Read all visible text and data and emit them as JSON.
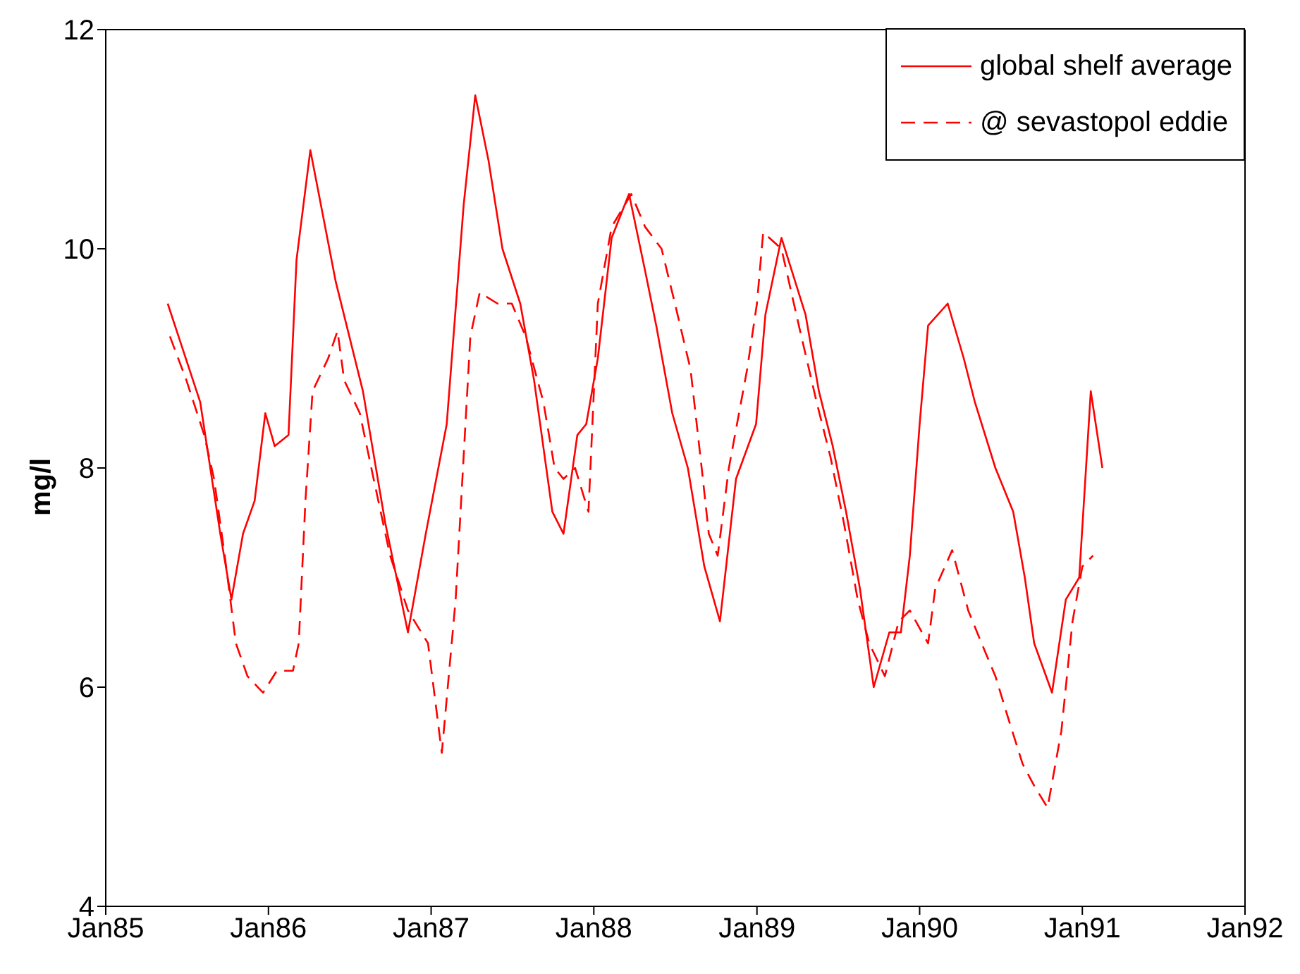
{
  "chart_data": {
    "type": "line",
    "ylabel": "mg/l",
    "xlim": [
      "1985-01",
      "1992-01"
    ],
    "ylim": [
      4,
      12
    ],
    "xticks": [
      {
        "value": "1985-01",
        "label": "Jan85"
      },
      {
        "value": "1986-01",
        "label": "Jan86"
      },
      {
        "value": "1987-01",
        "label": "Jan87"
      },
      {
        "value": "1988-01",
        "label": "Jan88"
      },
      {
        "value": "1989-01",
        "label": "Jan89"
      },
      {
        "value": "1990-01",
        "label": "Jan90"
      },
      {
        "value": "1991-01",
        "label": "Jan91"
      },
      {
        "value": "1992-01",
        "label": "Jan92"
      }
    ],
    "yticks": [
      4,
      6,
      8,
      10,
      12
    ],
    "legend": "top right",
    "series": [
      {
        "name": "global shelf average",
        "color": "#ff0000",
        "line_style": "solid",
        "x": [
          "1985-05-20",
          "1985-08-01",
          "1985-09-15",
          "1985-10-10",
          "1985-11-05",
          "1985-12-01",
          "1985-12-25",
          "1986-01-15",
          "1986-02-15",
          "1986-03-05",
          "1986-04-05",
          "1986-06-01",
          "1986-08-01",
          "1986-09-20",
          "1986-11-10",
          "1986-12-20",
          "1987-02-05",
          "1987-03-15",
          "1987-04-10",
          "1987-05-10",
          "1987-06-10",
          "1987-07-20",
          "1987-08-20",
          "1987-09-30",
          "1987-10-25",
          "1987-11-25",
          "1987-12-15",
          "1988-01-10",
          "1988-02-10",
          "1988-03-20",
          "1988-04-25",
          "1988-05-20",
          "1988-06-25",
          "1988-07-30",
          "1988-09-05",
          "1988-10-10",
          "1988-11-15",
          "1988-12-30",
          "1989-01-20",
          "1989-02-25",
          "1989-04-20",
          "1989-05-20",
          "1989-06-20",
          "1989-07-20",
          "1989-08-20",
          "1989-09-20",
          "1989-10-25",
          "1989-11-20",
          "1989-12-10",
          "1990-01-01",
          "1990-01-20",
          "1990-03-05",
          "1990-04-10",
          "1990-05-05",
          "1990-06-20",
          "1990-07-30",
          "1990-08-25",
          "1990-09-15",
          "1990-10-25",
          "1990-11-25",
          "1990-12-25",
          "1991-01-20",
          "1991-02-15"
        ],
        "values": [
          9.5,
          8.6,
          7.4,
          6.8,
          7.4,
          7.7,
          8.5,
          8.2,
          8.3,
          9.9,
          10.9,
          9.7,
          8.7,
          7.5,
          6.5,
          7.4,
          8.4,
          10.4,
          11.4,
          10.8,
          10,
          9.5,
          8.8,
          7.6,
          7.4,
          8.3,
          8.4,
          9,
          10.1,
          10.5,
          9.8,
          9.3,
          8.5,
          8,
          7.1,
          6.6,
          7.9,
          8.4,
          9.4,
          10.1,
          9.4,
          8.7,
          8.2,
          7.6,
          6.9,
          6,
          6.5,
          6.5,
          7.2,
          8.4,
          9.3,
          9.5,
          9,
          8.6,
          8,
          7.6,
          7,
          6.4,
          5.95,
          6.8,
          7,
          8.7,
          8
        ]
      },
      {
        "name": "@ sevastopol eddie",
        "color": "#ff0000",
        "line_style": "dashed",
        "x": [
          "1985-05-25",
          "1985-07-01",
          "1985-08-10",
          "1985-09-01",
          "1985-09-25",
          "1985-10-20",
          "1985-11-15",
          "1985-12-20",
          "1986-01-20",
          "1986-02-25",
          "1986-03-10",
          "1986-03-25",
          "1986-04-10",
          "1986-05-15",
          "1986-06-05",
          "1986-06-20",
          "1986-07-25",
          "1986-08-25",
          "1986-10-01",
          "1986-11-10",
          "1986-12-25",
          "1987-01-25",
          "1987-02-25",
          "1987-03-30",
          "1987-04-20",
          "1987-05-30",
          "1987-07-01",
          "1987-08-01",
          "1987-09-10",
          "1987-10-05",
          "1987-10-25",
          "1987-11-20",
          "1987-12-20",
          "1988-01-10",
          "1988-02-10",
          "1988-03-25",
          "1988-04-25",
          "1988-06-01",
          "1988-07-01",
          "1988-08-05",
          "1988-08-30",
          "1988-09-15",
          "1988-10-05",
          "1988-10-30",
          "1988-12-10",
          "1989-01-01",
          "1989-01-15",
          "1989-02-25",
          "1989-04-05",
          "1989-05-15",
          "1989-06-15",
          "1989-07-15",
          "1989-08-15",
          "1989-09-10",
          "1989-10-15",
          "1989-11-15",
          "1989-12-10",
          "1990-01-20",
          "1990-02-05",
          "1990-03-15",
          "1990-04-20",
          "1990-05-20",
          "1990-06-20",
          "1990-07-20",
          "1990-08-20",
          "1990-09-15",
          "1990-10-15",
          "1990-11-15",
          "1990-12-10",
          "1991-01-01",
          "1991-01-25"
        ],
        "values": [
          9.2,
          8.8,
          8.3,
          7.9,
          7.2,
          6.4,
          6.1,
          5.95,
          6.15,
          6.15,
          6.4,
          7.7,
          8.7,
          9,
          9.25,
          8.8,
          8.5,
          7.9,
          7.2,
          6.7,
          6.4,
          5.4,
          6.8,
          9.2,
          9.6,
          9.5,
          9.5,
          9.2,
          8.6,
          8,
          7.9,
          8,
          7.6,
          9.5,
          10.2,
          10.5,
          10.2,
          10,
          9.5,
          8.9,
          8,
          7.4,
          7.2,
          8,
          8.9,
          9.5,
          10.15,
          10,
          9.3,
          8.6,
          8.1,
          7.5,
          6.8,
          6.4,
          6.1,
          6.6,
          6.7,
          6.4,
          6.9,
          7.25,
          6.7,
          6.4,
          6.1,
          5.7,
          5.3,
          5.1,
          4.9,
          5.6,
          6.6,
          7.1,
          7.2
        ]
      }
    ]
  }
}
